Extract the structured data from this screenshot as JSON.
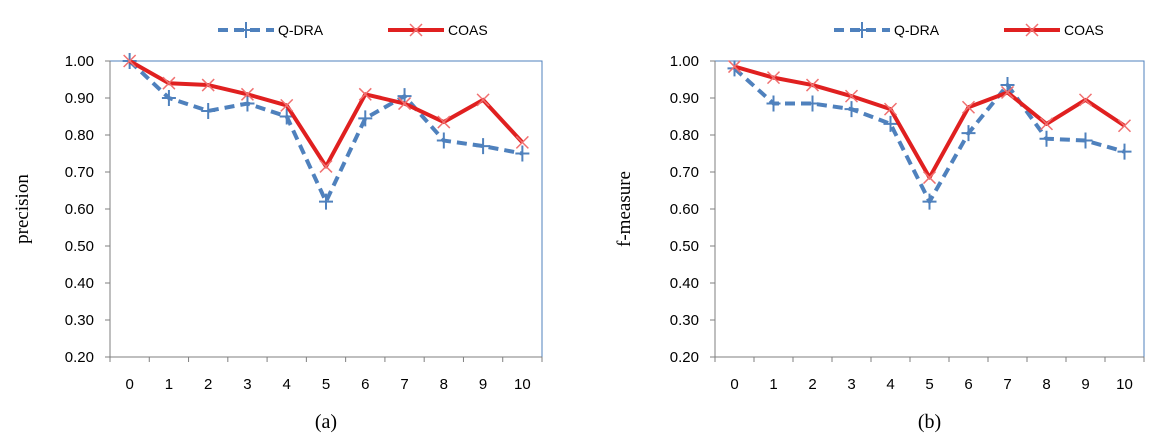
{
  "chart_data": [
    {
      "type": "line",
      "caption": "(a)",
      "ylabel": "precision",
      "xlabel": "",
      "ylim": [
        0.2,
        1.0
      ],
      "y_ticks": [
        "0.20",
        "0.30",
        "0.40",
        "0.50",
        "0.60",
        "0.70",
        "0.80",
        "0.90",
        "1.00"
      ],
      "categories": [
        "0",
        "1",
        "2",
        "3",
        "4",
        "5",
        "6",
        "7",
        "8",
        "9",
        "10"
      ],
      "grid": false,
      "legend": "top",
      "series": [
        {
          "name": "Q-DRA",
          "color": "#4F81BD",
          "style": "dashed",
          "marker": "plus",
          "values": [
            1.0,
            0.9,
            0.865,
            0.885,
            0.85,
            0.62,
            0.845,
            0.905,
            0.785,
            0.77,
            0.75
          ]
        },
        {
          "name": "COAS",
          "color": "#E02020",
          "style": "solid",
          "marker": "x",
          "values": [
            1.0,
            0.94,
            0.935,
            0.91,
            0.88,
            0.715,
            0.91,
            0.885,
            0.835,
            0.895,
            0.78
          ]
        }
      ]
    },
    {
      "type": "line",
      "caption": "(b)",
      "ylabel": "f-measure",
      "xlabel": "",
      "ylim": [
        0.2,
        1.0
      ],
      "y_ticks": [
        "0.20",
        "0.30",
        "0.40",
        "0.50",
        "0.60",
        "0.70",
        "0.80",
        "0.90",
        "1.00"
      ],
      "categories": [
        "0",
        "1",
        "2",
        "3",
        "4",
        "5",
        "6",
        "7",
        "8",
        "9",
        "10"
      ],
      "grid": false,
      "legend": "top",
      "series": [
        {
          "name": "Q-DRA",
          "color": "#4F81BD",
          "style": "dashed",
          "marker": "plus",
          "values": [
            0.98,
            0.885,
            0.885,
            0.87,
            0.83,
            0.62,
            0.805,
            0.935,
            0.79,
            0.785,
            0.755
          ]
        },
        {
          "name": "COAS",
          "color": "#E02020",
          "style": "solid",
          "marker": "x",
          "values": [
            0.985,
            0.955,
            0.935,
            0.905,
            0.87,
            0.685,
            0.875,
            0.915,
            0.83,
            0.895,
            0.825
          ]
        }
      ]
    }
  ]
}
